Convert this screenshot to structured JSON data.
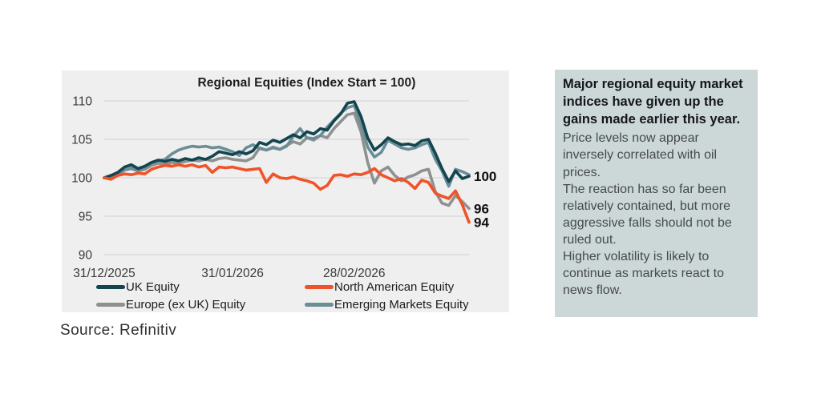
{
  "chart": {
    "title": "Regional Equities (Index Start = 100)"
  },
  "chart_data": {
    "type": "line",
    "title": "Regional Equities (Index Start = 100)",
    "x_axis": {
      "tick_labels": [
        "31/12/2025",
        "31/01/2026",
        "28/02/2026"
      ],
      "tick_day_indices": [
        0,
        19,
        37
      ]
    },
    "y_axis": {
      "tick_labels": [
        "110",
        "105",
        "100",
        "95",
        "90"
      ],
      "ylim": [
        90,
        110
      ],
      "grid": true
    },
    "legend_position": "bottom",
    "series": [
      {
        "name": "UK Equity",
        "color": "#13454e",
        "values": [
          100,
          100.3,
          100.7,
          101.4,
          101.7,
          101.2,
          101.5,
          102.0,
          102.3,
          102.1,
          102.4,
          102.2,
          102.5,
          102.3,
          102.6,
          102.4,
          102.8,
          103.4,
          103.2,
          103.0,
          103.4,
          103.1,
          103.5,
          104.6,
          104.3,
          104.9,
          104.6,
          105.1,
          105.6,
          105.2,
          106.0,
          105.7,
          106.4,
          106.2,
          107.4,
          108.3,
          109.7,
          109.9,
          108.0,
          105.2,
          103.6,
          104.3,
          105.2,
          104.7,
          104.3,
          104.4,
          104.2,
          104.8,
          105.0,
          103.2,
          101.2,
          99.5,
          100.9,
          99.9,
          100.2
        ]
      },
      {
        "name": "North American Equity",
        "color": "#f0532a",
        "values": [
          100,
          99.8,
          100.3,
          100.5,
          100.4,
          100.6,
          100.5,
          101.1,
          101.4,
          101.6,
          101.5,
          101.7,
          101.5,
          101.7,
          101.4,
          101.6,
          100.7,
          101.4,
          101.3,
          101.4,
          101.2,
          101.0,
          101.1,
          101.2,
          99.4,
          100.5,
          100.0,
          99.9,
          100.1,
          99.8,
          99.6,
          99.3,
          98.5,
          99.0,
          100.3,
          100.4,
          100.2,
          100.5,
          100.4,
          100.7,
          101.2,
          100.4,
          100.0,
          99.6,
          99.9,
          99.4,
          98.6,
          99.7,
          99.4,
          98.0,
          97.6,
          97.3,
          98.3,
          96.5,
          94.2
        ]
      },
      {
        "name": "Europe (ex UK) Equity",
        "color": "#8f9191",
        "values": [
          100,
          100.1,
          100.4,
          101.0,
          101.3,
          100.9,
          101.1,
          101.6,
          101.9,
          101.7,
          102.0,
          101.9,
          102.1,
          102.3,
          102.2,
          102.4,
          102.2,
          102.5,
          102.6,
          102.4,
          102.3,
          102.2,
          102.6,
          103.9,
          103.6,
          104.0,
          103.7,
          104.2,
          104.7,
          104.4,
          105.2,
          104.9,
          105.5,
          105.2,
          106.4,
          107.3,
          108.2,
          108.4,
          106.0,
          102.0,
          99.3,
          100.9,
          101.4,
          100.3,
          99.6,
          100.1,
          100.4,
          100.9,
          101.1,
          98.2,
          96.7,
          96.4,
          97.7,
          96.9,
          96.0
        ]
      },
      {
        "name": "Emerging Markets Equity",
        "color": "#6b8d96",
        "values": [
          100,
          100.2,
          100.5,
          101.0,
          101.2,
          100.9,
          101.3,
          101.9,
          102.2,
          102.4,
          103.1,
          103.6,
          103.9,
          104.1,
          104.0,
          104.1,
          103.9,
          104.0,
          103.7,
          103.4,
          102.9,
          103.9,
          104.3,
          103.8,
          103.6,
          103.9,
          103.7,
          104.1,
          105.4,
          106.4,
          105.2,
          105.1,
          105.5,
          106.6,
          107.5,
          108.4,
          109.1,
          109.4,
          107.0,
          104.0,
          102.7,
          103.3,
          104.9,
          104.4,
          103.9,
          103.7,
          103.9,
          104.3,
          104.6,
          102.4,
          100.9,
          98.9,
          101.1,
          100.8,
          100.4
        ]
      }
    ],
    "end_labels": [
      {
        "text": "100",
        "series_index": 0
      },
      {
        "text": "96",
        "series_index": 2
      },
      {
        "text": "94",
        "series_index": 1
      }
    ]
  },
  "panel": {
    "heading": "Major regional equity market indices have given up the gains made earlier this year.",
    "body": [
      "Price levels now appear inversely correlated with oil prices.",
      "The reaction has so far been relatively contained, but more aggressive falls should not be ruled out.",
      "Higher volatility is likely to continue as markets react to news flow."
    ]
  },
  "source": "Source: Refinitiv"
}
